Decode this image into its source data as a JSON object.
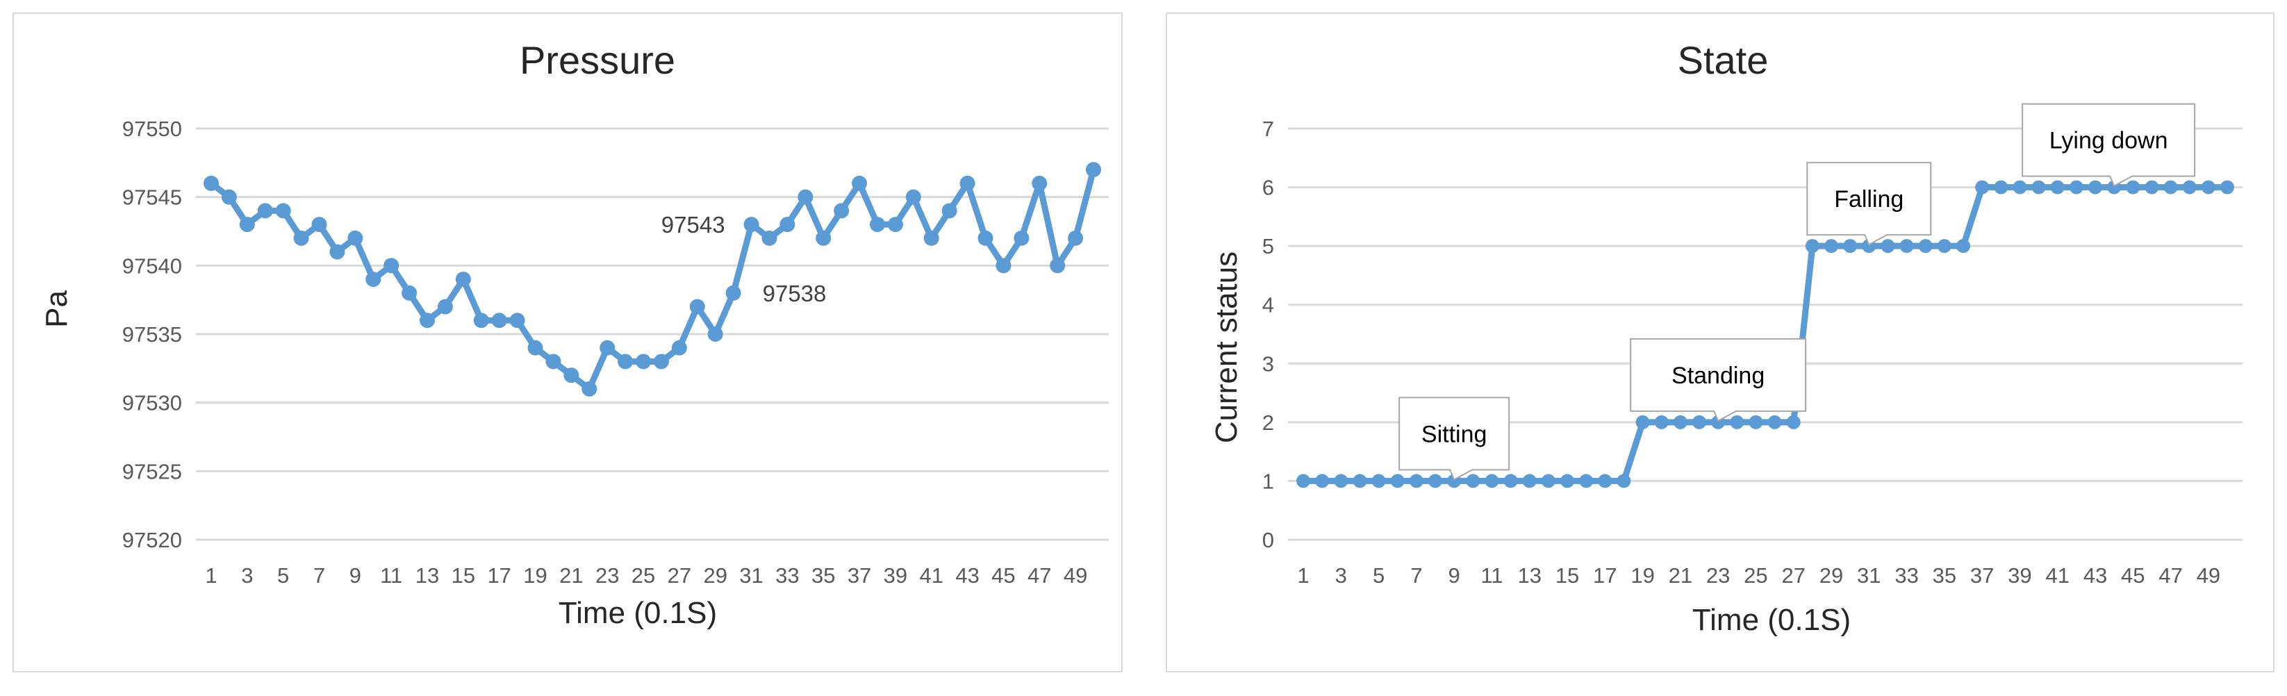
{
  "chart_data": [
    {
      "type": "line",
      "title": "Pressure",
      "xlabel": "Time (0.1S)",
      "ylabel": "Pa",
      "ylim": [
        97520,
        97550
      ],
      "yticks": [
        97520,
        97525,
        97530,
        97535,
        97540,
        97545,
        97550
      ],
      "xtick_labels": [
        "1",
        "3",
        "5",
        "7",
        "9",
        "11",
        "13",
        "15",
        "17",
        "19",
        "21",
        "23",
        "25",
        "27",
        "29",
        "31",
        "33",
        "35",
        "37",
        "39",
        "41",
        "43",
        "45",
        "47",
        "49"
      ],
      "x": [
        1,
        2,
        3,
        4,
        5,
        6,
        7,
        8,
        9,
        10,
        11,
        12,
        13,
        14,
        15,
        16,
        17,
        18,
        19,
        20,
        21,
        22,
        23,
        24,
        25,
        26,
        27,
        28,
        29,
        30,
        31,
        32,
        33,
        34,
        35,
        36,
        37,
        38,
        39,
        40,
        41,
        42,
        43,
        44,
        45,
        46,
        47,
        48,
        49,
        50
      ],
      "series": [
        {
          "values": [
            97546,
            97545,
            97543,
            97544,
            97544,
            97542,
            97543,
            97541,
            97542,
            97539,
            97540,
            97538,
            97536,
            97537,
            97539,
            97536,
            97536,
            97536,
            97534,
            97533,
            97532,
            97531,
            97534,
            97533,
            97533,
            97533,
            97534,
            97537,
            97535,
            97538,
            97543,
            97542,
            97543,
            97545,
            97542,
            97544,
            97546,
            97543,
            97543,
            97545,
            97542,
            97544,
            97546,
            97542,
            97540,
            97542,
            97546,
            97540,
            97542,
            97547
          ]
        }
      ],
      "annotations": [
        {
          "text": "97543",
          "x": 31,
          "y": 97543
        },
        {
          "text": "97538",
          "x": 30,
          "y": 97538
        }
      ],
      "grid": true,
      "legend": "none"
    },
    {
      "type": "line",
      "title": "State",
      "xlabel": "Time (0.1S)",
      "ylabel": "Current status",
      "ylim": [
        0,
        7
      ],
      "yticks": [
        0,
        1,
        2,
        3,
        4,
        5,
        6,
        7
      ],
      "xtick_labels": [
        "1",
        "3",
        "5",
        "7",
        "9",
        "11",
        "13",
        "15",
        "17",
        "19",
        "21",
        "23",
        "25",
        "27",
        "29",
        "31",
        "33",
        "35",
        "37",
        "39",
        "41",
        "43",
        "45",
        "47",
        "49"
      ],
      "x": [
        1,
        2,
        3,
        4,
        5,
        6,
        7,
        8,
        9,
        10,
        11,
        12,
        13,
        14,
        15,
        16,
        17,
        18,
        19,
        20,
        21,
        22,
        23,
        24,
        25,
        26,
        27,
        28,
        29,
        30,
        31,
        32,
        33,
        34,
        35,
        36,
        37,
        38,
        39,
        40,
        41,
        42,
        43,
        44,
        45,
        46,
        47,
        48,
        49,
        50
      ],
      "series": [
        {
          "values": [
            1,
            1,
            1,
            1,
            1,
            1,
            1,
            1,
            1,
            1,
            1,
            1,
            1,
            1,
            1,
            1,
            1,
            1,
            2,
            2,
            2,
            2,
            2,
            2,
            2,
            2,
            2,
            5,
            5,
            5,
            5,
            5,
            5,
            5,
            5,
            5,
            6,
            6,
            6,
            6,
            6,
            6,
            6,
            6,
            6,
            6,
            6,
            6,
            6,
            6
          ]
        }
      ],
      "callouts": [
        {
          "text": "Sitting",
          "x": 9,
          "y": 1
        },
        {
          "text": "Standing",
          "x": 23,
          "y": 2
        },
        {
          "text": "Falling",
          "x": 31,
          "y": 5
        },
        {
          "text": "Lying down",
          "x": 44,
          "y": 6
        }
      ],
      "grid": true,
      "legend": "none"
    }
  ]
}
